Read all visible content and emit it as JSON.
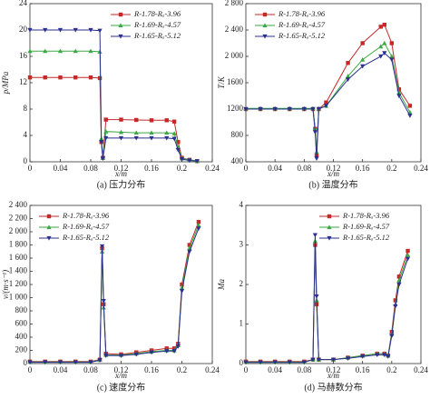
{
  "chart_data": [
    {
      "type": "line",
      "caption": "(a) 压力分布",
      "xlabel": "x/m",
      "ylabel": "p/MPa",
      "xlim": [
        0,
        0.24
      ],
      "xticks": [
        0,
        0.04,
        0.08,
        0.12,
        0.16,
        0.2,
        0.24
      ],
      "ylim": [
        0,
        24
      ],
      "yticks": [
        0,
        4,
        8,
        12,
        16,
        20,
        24
      ],
      "legend": "upper right",
      "x": [
        0,
        0.02,
        0.04,
        0.06,
        0.08,
        0.092,
        0.094,
        0.096,
        0.1,
        0.12,
        0.14,
        0.16,
        0.18,
        0.19,
        0.195,
        0.2,
        0.21,
        0.22
      ],
      "series": [
        {
          "name": "R-1.78-Rₐ-3.96",
          "color": "#c62828",
          "marker": "square",
          "values": [
            12.8,
            12.8,
            12.8,
            12.8,
            12.8,
            12.7,
            3,
            0.6,
            6.4,
            6.4,
            6.35,
            6.3,
            6.3,
            6.1,
            3,
            0.6,
            0.3,
            0.1
          ]
        },
        {
          "name": "R-1.69-Rₐ-4.57",
          "color": "#3aa843",
          "marker": "triangle-up",
          "values": [
            16.8,
            16.8,
            16.8,
            16.8,
            16.8,
            16.7,
            3.5,
            0.6,
            4.6,
            4.5,
            4.4,
            4.4,
            4.4,
            4.3,
            2.2,
            0.5,
            0.3,
            0.1
          ]
        },
        {
          "name": "R-1.65-Rₐ-5.12",
          "color": "#2b2f8f",
          "marker": "triangle-down",
          "values": [
            20,
            20,
            20,
            20,
            20,
            19.9,
            3,
            0.5,
            3.6,
            3.6,
            3.6,
            3.6,
            3.6,
            3.5,
            1.8,
            0.4,
            0.2,
            0.1
          ]
        }
      ]
    },
    {
      "type": "line",
      "caption": "(b) 温度分布",
      "xlabel": "x/m",
      "ylabel": "T/K",
      "xlim": [
        0,
        0.24
      ],
      "xticks": [
        0,
        0.04,
        0.08,
        0.12,
        0.16,
        0.2,
        0.24
      ],
      "ylim": [
        400,
        2800
      ],
      "yticks": [
        400,
        800,
        1200,
        1600,
        {
          "value": 2000,
          "label": "2 000"
        },
        {
          "value": 2400,
          "label": "2 400"
        },
        {
          "value": 2800,
          "label": "2 800"
        }
      ],
      "legend": "upper left",
      "x": [
        0,
        0.02,
        0.04,
        0.06,
        0.08,
        0.092,
        0.095,
        0.097,
        0.1,
        0.11,
        0.14,
        0.16,
        0.185,
        0.19,
        0.2,
        0.21,
        0.225
      ],
      "series": [
        {
          "name": "R-1.78-Rₐ-3.96",
          "color": "#c62828",
          "marker": "square",
          "values": [
            1200,
            1200,
            1200,
            1200,
            1200,
            1200,
            900,
            500,
            1200,
            1300,
            1900,
            2200,
            2450,
            2480,
            2200,
            1500,
            1250
          ]
        },
        {
          "name": "R-1.69-Rₐ-4.57",
          "color": "#3aa843",
          "marker": "triangle-up",
          "values": [
            1210,
            1210,
            1210,
            1210,
            1210,
            1210,
            900,
            550,
            1210,
            1250,
            1700,
            1950,
            2150,
            2200,
            2000,
            1450,
            1150
          ]
        },
        {
          "name": "R-1.65-Rₐ-5.12",
          "color": "#2b2f8f",
          "marker": "triangle-down",
          "values": [
            1200,
            1200,
            1200,
            1200,
            1200,
            1200,
            850,
            450,
            1200,
            1250,
            1650,
            1850,
            2000,
            2050,
            1950,
            1400,
            1100
          ]
        }
      ]
    },
    {
      "type": "line",
      "caption": "(c) 速度分布",
      "xlabel": "x/m",
      "ylabel": "v/(m·s⁻¹)",
      "xlim": [
        0,
        0.24
      ],
      "xticks": [
        0,
        0.04,
        0.08,
        0.12,
        0.16,
        0.2,
        0.24
      ],
      "ylim": [
        0,
        2400
      ],
      "yticks": [
        0,
        200,
        400,
        600,
        800,
        {
          "value": 1000,
          "label": "1 000"
        },
        {
          "value": 1200,
          "label": "1 200"
        },
        {
          "value": 1400,
          "label": "1 400"
        },
        {
          "value": 1600,
          "label": "1 600"
        },
        {
          "value": 1800,
          "label": "1 800"
        },
        {
          "value": 2000,
          "label": "2 000"
        },
        {
          "value": 2200,
          "label": "2 200"
        },
        {
          "value": 2400,
          "label": "2 400"
        }
      ],
      "legend": "upper left",
      "x": [
        0,
        0.02,
        0.04,
        0.06,
        0.08,
        0.092,
        0.095,
        0.097,
        0.1,
        0.12,
        0.14,
        0.16,
        0.18,
        0.19,
        0.195,
        0.2,
        0.21,
        0.222
      ],
      "series": [
        {
          "name": "R-1.78-Rₐ-3.96",
          "color": "#c62828",
          "marker": "square",
          "values": [
            30,
            30,
            30,
            30,
            30,
            60,
            1750,
            900,
            150,
            140,
            170,
            200,
            230,
            230,
            300,
            1200,
            1800,
            2150
          ]
        },
        {
          "name": "R-1.69-Rₐ-4.57",
          "color": "#3aa843",
          "marker": "triangle-up",
          "values": [
            25,
            25,
            25,
            25,
            25,
            55,
            1700,
            850,
            130,
            130,
            150,
            180,
            200,
            200,
            280,
            1150,
            1750,
            2100
          ]
        },
        {
          "name": "R-1.65-Rₐ-5.12",
          "color": "#2b2f8f",
          "marker": "triangle-down",
          "values": [
            20,
            20,
            20,
            20,
            20,
            50,
            1780,
            950,
            120,
            120,
            140,
            170,
            190,
            190,
            260,
            1100,
            1700,
            2050
          ]
        }
      ]
    },
    {
      "type": "line",
      "caption": "(d) 马赫数分布",
      "xlabel": "x/m",
      "ylabel": "Ma",
      "xlim": [
        0,
        0.24
      ],
      "xticks": [
        0,
        0.04,
        0.08,
        0.12,
        0.16,
        0.2,
        0.24
      ],
      "ylim": [
        0,
        4
      ],
      "yticks": [
        0,
        1,
        2,
        3,
        4
      ],
      "legend": "upper right",
      "x": [
        0,
        0.02,
        0.04,
        0.06,
        0.08,
        0.092,
        0.095,
        0.097,
        0.1,
        0.12,
        0.14,
        0.16,
        0.18,
        0.19,
        0.195,
        0.2,
        0.205,
        0.21,
        0.222
      ],
      "series": [
        {
          "name": "R-1.78-Rₐ-3.96",
          "color": "#c62828",
          "marker": "square",
          "values": [
            0.05,
            0.05,
            0.05,
            0.05,
            0.05,
            0.1,
            3.0,
            1.5,
            0.1,
            0.1,
            0.15,
            0.2,
            0.25,
            0.25,
            0.2,
            0.8,
            1.6,
            2.2,
            2.85
          ]
        },
        {
          "name": "R-1.69-Rₐ-4.57",
          "color": "#3aa843",
          "marker": "triangle-up",
          "values": [
            0.04,
            0.04,
            0.04,
            0.04,
            0.04,
            0.1,
            3.1,
            1.6,
            0.1,
            0.1,
            0.15,
            0.2,
            0.25,
            0.25,
            0.2,
            0.75,
            1.5,
            2.1,
            2.75
          ]
        },
        {
          "name": "R-1.65-Rₐ-5.12",
          "color": "#2b2f8f",
          "marker": "triangle-down",
          "values": [
            0.03,
            0.03,
            0.03,
            0.03,
            0.03,
            0.1,
            3.25,
            1.7,
            0.1,
            0.1,
            0.13,
            0.18,
            0.22,
            0.22,
            0.18,
            0.7,
            1.45,
            2.0,
            2.65
          ]
        }
      ]
    }
  ]
}
